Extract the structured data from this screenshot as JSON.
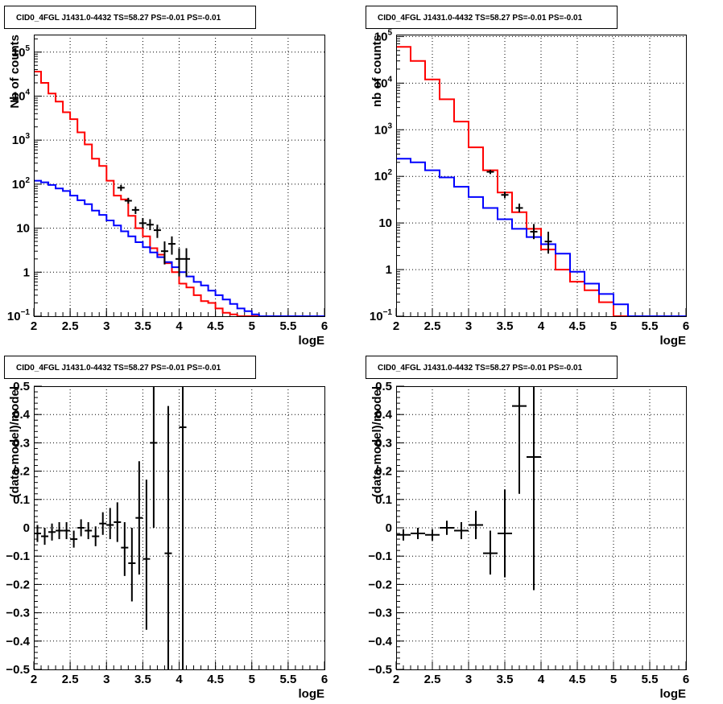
{
  "chart_data": [
    {
      "type": "line",
      "title": "CID0_4FGL J1431.0-4432 TS=58.27 PS=-0.01 PS=-0.01",
      "xlabel": "logE",
      "ylabel": "Nb of counts",
      "xlim": [
        2,
        6
      ],
      "ylim": [
        0.1,
        250000
      ],
      "yscale": "log",
      "grid": true,
      "x_ticks": [
        "2",
        "2.5",
        "3",
        "3.5",
        "4",
        "4.5",
        "5",
        "5.5",
        "6"
      ],
      "y_ticks": [
        {
          "value": 0.1,
          "base": "10",
          "exp": "−1"
        },
        {
          "value": 1,
          "label": "1"
        },
        {
          "value": 10,
          "label": "10"
        },
        {
          "value": 100,
          "base": "10",
          "exp": "2"
        },
        {
          "value": 1000,
          "base": "10",
          "exp": "3"
        },
        {
          "value": 10000,
          "base": "10",
          "exp": "4"
        },
        {
          "value": 100000,
          "base": "10",
          "exp": "5"
        }
      ],
      "bin_edges": [
        2.0,
        2.1,
        2.2,
        2.3,
        2.4,
        2.5,
        2.6,
        2.7,
        2.8,
        2.9,
        3.0,
        3.1,
        3.2,
        3.3,
        3.4,
        3.5,
        3.6,
        3.7,
        3.8,
        3.9,
        4.0,
        4.1,
        4.2,
        4.3,
        4.4,
        4.5,
        4.6,
        4.7,
        4.8,
        4.9,
        5.0,
        5.1,
        5.2,
        5.3,
        5.4,
        5.5,
        5.6,
        5.7,
        5.8,
        5.9,
        6.0
      ],
      "series": [
        {
          "color": "#ff0000",
          "values": [
            36000,
            20000,
            11500,
            7500,
            4300,
            3000,
            1500,
            800,
            380,
            260,
            120,
            55,
            45,
            19,
            10,
            6.5,
            3.5,
            2.5,
            1.6,
            1.0,
            0.55,
            0.45,
            0.3,
            0.22,
            0.2,
            0.15,
            0.12,
            0.11,
            0.1,
            0.1,
            0.1,
            0.1,
            0.1,
            0.1,
            0.1,
            0.1,
            0.1,
            0.1,
            0.1,
            0.1
          ]
        },
        {
          "color": "#0000ff",
          "values": [
            120,
            110,
            96,
            80,
            70,
            55,
            43,
            35,
            25,
            20,
            15,
            11.5,
            8.5,
            6.5,
            4.8,
            3.7,
            2.8,
            2.2,
            1.7,
            1.3,
            1.0,
            0.8,
            0.6,
            0.5,
            0.38,
            0.3,
            0.24,
            0.19,
            0.15,
            0.13,
            0.11,
            0.1,
            0.1,
            0.1,
            0.1,
            0.1,
            0.1,
            0.1,
            0.1,
            0.1
          ]
        },
        {
          "color": "#000000",
          "kind": "points",
          "points": [
            {
              "x": 3.2,
              "y": 83,
              "lo": 70,
              "hi": 96
            },
            {
              "x": 3.3,
              "y": 42,
              "lo": 36,
              "hi": 49
            },
            {
              "x": 3.4,
              "y": 26,
              "lo": 21,
              "hi": 31
            },
            {
              "x": 3.5,
              "y": 13,
              "lo": 10,
              "hi": 17
            },
            {
              "x": 3.6,
              "y": 12,
              "lo": 9,
              "hi": 16
            },
            {
              "x": 3.7,
              "y": 9,
              "lo": 6,
              "hi": 12
            },
            {
              "x": 3.8,
              "y": 3,
              "lo": 1.5,
              "hi": 5
            },
            {
              "x": 3.9,
              "y": 4.4,
              "lo": 2.5,
              "hi": 6.5
            },
            {
              "x": 4.0,
              "y": 2,
              "lo": 0.8,
              "hi": 3.5
            },
            {
              "x": 4.1,
              "y": 2,
              "lo": 0.8,
              "hi": 3.5
            }
          ]
        }
      ]
    },
    {
      "type": "line",
      "title": "CID0_4FGL J1431.0-4432 TS=58.27 PS=-0.01 PS=-0.01",
      "xlabel": "logE",
      "ylabel": "nb of counts",
      "xlim": [
        2,
        6
      ],
      "ylim": [
        0.1,
        110000
      ],
      "yscale": "log",
      "grid": true,
      "x_ticks": [
        "2",
        "2.5",
        "3",
        "3.5",
        "4",
        "4.5",
        "5",
        "5.5",
        "6"
      ],
      "y_ticks": [
        {
          "value": 0.1,
          "base": "10",
          "exp": "−1"
        },
        {
          "value": 1,
          "label": "1"
        },
        {
          "value": 10,
          "label": "10"
        },
        {
          "value": 100,
          "base": "10",
          "exp": "2"
        },
        {
          "value": 1000,
          "base": "10",
          "exp": "3"
        },
        {
          "value": 10000,
          "base": "10",
          "exp": "4"
        },
        {
          "value": 100000,
          "base": "10",
          "exp": "5"
        }
      ],
      "bin_edges": [
        2.0,
        2.2,
        2.4,
        2.6,
        2.8,
        3.0,
        3.2,
        3.4,
        3.6,
        3.8,
        4.0,
        4.2,
        4.4,
        4.6,
        4.8,
        5.0,
        5.2,
        5.4,
        5.6,
        5.8,
        6.0
      ],
      "series": [
        {
          "color": "#ff0000",
          "values": [
            60000,
            30000,
            12000,
            4500,
            1500,
            420,
            135,
            45,
            17,
            7.5,
            2.7,
            1.0,
            0.55,
            0.36,
            0.2,
            0.1,
            0.1,
            0.1,
            0.1,
            0.1
          ]
        },
        {
          "color": "#0000ff",
          "values": [
            240,
            200,
            135,
            95,
            60,
            36,
            21,
            12,
            7.5,
            5.0,
            3.5,
            2.2,
            0.9,
            0.5,
            0.3,
            0.18,
            0.1,
            0.1,
            0.1,
            0.1
          ]
        },
        {
          "color": "#000000",
          "kind": "points",
          "points": [
            {
              "x": 3.3,
              "y": 125,
              "lo": 112,
              "hi": 138
            },
            {
              "x": 3.5,
              "y": 40,
              "lo": 34,
              "hi": 47
            },
            {
              "x": 3.7,
              "y": 21,
              "lo": 17,
              "hi": 26
            },
            {
              "x": 3.9,
              "y": 6.5,
              "lo": 4.5,
              "hi": 9.5
            },
            {
              "x": 4.1,
              "y": 4.0,
              "lo": 2.2,
              "hi": 6.5
            }
          ]
        }
      ]
    },
    {
      "type": "scatter",
      "title": "CID0_4FGL J1431.0-4432 TS=58.27 PS=-0.01 PS=-0.01",
      "xlabel": "logE",
      "ylabel": "(data-model)/model",
      "xlim": [
        2,
        6
      ],
      "ylim": [
        -0.5,
        0.5
      ],
      "yscale": "linear",
      "grid": true,
      "x_ticks": [
        "2",
        "2.5",
        "3",
        "3.5",
        "4",
        "4.5",
        "5",
        "5.5",
        "6"
      ],
      "y_ticks": [
        "−0.5",
        "−0.4",
        "−0.3",
        "−0.2",
        "−0.1",
        "0",
        "0.1",
        "0.2",
        "0.3",
        "0.4",
        "0.5"
      ],
      "series": [
        {
          "color": "#000000",
          "xerr": 0.05,
          "points": [
            {
              "x": 2.05,
              "y": -0.02,
              "lo": -0.05,
              "hi": 0.01
            },
            {
              "x": 2.15,
              "y": -0.03,
              "lo": -0.06,
              "hi": 0.0
            },
            {
              "x": 2.25,
              "y": -0.015,
              "lo": -0.045,
              "hi": 0.015
            },
            {
              "x": 2.35,
              "y": -0.01,
              "lo": -0.04,
              "hi": 0.02
            },
            {
              "x": 2.45,
              "y": -0.01,
              "lo": -0.04,
              "hi": 0.02
            },
            {
              "x": 2.55,
              "y": -0.04,
              "lo": -0.07,
              "hi": -0.01
            },
            {
              "x": 2.65,
              "y": 0.0,
              "lo": -0.03,
              "hi": 0.03
            },
            {
              "x": 2.75,
              "y": -0.01,
              "lo": -0.04,
              "hi": 0.02
            },
            {
              "x": 2.85,
              "y": -0.03,
              "lo": -0.065,
              "hi": 0.005
            },
            {
              "x": 2.95,
              "y": 0.015,
              "lo": -0.025,
              "hi": 0.055
            },
            {
              "x": 3.05,
              "y": 0.01,
              "lo": -0.04,
              "hi": 0.07
            },
            {
              "x": 3.15,
              "y": 0.02,
              "lo": -0.05,
              "hi": 0.09
            },
            {
              "x": 3.25,
              "y": -0.07,
              "lo": -0.17,
              "hi": 0.02
            },
            {
              "x": 3.35,
              "y": -0.125,
              "lo": -0.26,
              "hi": 0.0
            },
            {
              "x": 3.45,
              "y": 0.035,
              "lo": -0.165,
              "hi": 0.235
            },
            {
              "x": 3.55,
              "y": -0.11,
              "lo": -0.36,
              "hi": 0.17
            },
            {
              "x": 3.65,
              "y": 0.3,
              "lo": 0.0,
              "hi": 0.5
            },
            {
              "x": 3.85,
              "y": -0.09,
              "lo": -0.5,
              "hi": 0.43
            },
            {
              "x": 4.05,
              "y": 0.355,
              "lo": -0.5,
              "hi": 0.5
            }
          ]
        }
      ]
    },
    {
      "type": "scatter",
      "title": "CID0_4FGL J1431.0-4432 TS=58.27 PS=-0.01 PS=-0.01",
      "xlabel": "logE",
      "ylabel": "(data-model)/model",
      "xlim": [
        2,
        6
      ],
      "ylim": [
        -0.5,
        0.5
      ],
      "yscale": "linear",
      "grid": true,
      "x_ticks": [
        "2",
        "2.5",
        "3",
        "3.5",
        "4",
        "4.5",
        "5",
        "5.5",
        "6"
      ],
      "y_ticks": [
        "−0.5",
        "−0.4",
        "−0.3",
        "−0.2",
        "−0.1",
        "0",
        "0.1",
        "0.2",
        "0.3",
        "0.4",
        "0.5"
      ],
      "series": [
        {
          "color": "#000000",
          "xerr": 0.1,
          "points": [
            {
              "x": 2.1,
              "y": -0.025,
              "lo": -0.045,
              "hi": -0.005
            },
            {
              "x": 2.3,
              "y": -0.02,
              "lo": -0.04,
              "hi": 0.0
            },
            {
              "x": 2.5,
              "y": -0.025,
              "lo": -0.045,
              "hi": -0.005
            },
            {
              "x": 2.7,
              "y": 0.0,
              "lo": -0.025,
              "hi": 0.025
            },
            {
              "x": 2.9,
              "y": -0.01,
              "lo": -0.04,
              "hi": 0.02
            },
            {
              "x": 3.1,
              "y": 0.01,
              "lo": -0.04,
              "hi": 0.06
            },
            {
              "x": 3.3,
              "y": -0.09,
              "lo": -0.165,
              "hi": -0.01
            },
            {
              "x": 3.5,
              "y": -0.02,
              "lo": -0.175,
              "hi": 0.135
            },
            {
              "x": 3.7,
              "y": 0.43,
              "lo": 0.12,
              "hi": 0.5
            },
            {
              "x": 3.9,
              "y": 0.25,
              "lo": -0.22,
              "hi": 0.5
            }
          ]
        }
      ]
    }
  ]
}
